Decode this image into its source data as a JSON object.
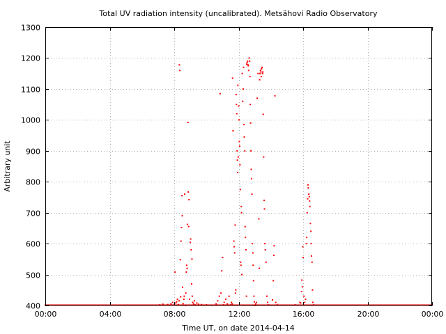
{
  "chart_data": {
    "type": "scatter",
    "title": "Total UV radiation intensity (uncalibrated). Metsähovi Radio Observatory",
    "xlabel": "Time UT, on date 2014-04-14",
    "ylabel": "Arbitrary unit",
    "xlim": [
      0,
      24
    ],
    "ylim": [
      400,
      1300
    ],
    "x_ticks": [
      {
        "value": 0,
        "label": "00:00"
      },
      {
        "value": 4,
        "label": "04:00"
      },
      {
        "value": 8,
        "label": "08:00"
      },
      {
        "value": 12,
        "label": "12:00"
      },
      {
        "value": 16,
        "label": "16:00"
      },
      {
        "value": 20,
        "label": "20:00"
      },
      {
        "value": 24,
        "label": "00:00"
      }
    ],
    "y_ticks": [
      400,
      500,
      600,
      700,
      800,
      900,
      1000,
      1100,
      1200,
      1300
    ],
    "grid": true,
    "series": [
      {
        "color": "#ff0000",
        "baseline": {
          "y": 400,
          "x_from": 0,
          "x_to": 24,
          "step_hours": 0.04
        },
        "points": [
          [
            7.1,
            402
          ],
          [
            7.3,
            404
          ],
          [
            7.6,
            403
          ],
          [
            7.8,
            405
          ],
          [
            7.9,
            410
          ],
          [
            8.0,
            402
          ],
          [
            8.05,
            508
          ],
          [
            8.1,
            408
          ],
          [
            8.15,
            412
          ],
          [
            8.2,
            420
          ],
          [
            8.25,
            403
          ],
          [
            8.3,
            415
          ],
          [
            8.32,
            1178
          ],
          [
            8.35,
            1160
          ],
          [
            8.38,
            548
          ],
          [
            8.4,
            428
          ],
          [
            8.42,
            608
          ],
          [
            8.45,
            652
          ],
          [
            8.48,
            755
          ],
          [
            8.5,
            690
          ],
          [
            8.52,
            459
          ],
          [
            8.55,
            406
          ],
          [
            8.6,
            420
          ],
          [
            8.62,
            430
          ],
          [
            8.65,
            760
          ],
          [
            8.7,
            400
          ],
          [
            8.72,
            440
          ],
          [
            8.75,
            508
          ],
          [
            8.77,
            530
          ],
          [
            8.8,
            520
          ],
          [
            8.82,
            662
          ],
          [
            8.85,
            992
          ],
          [
            8.87,
            767
          ],
          [
            8.9,
            655
          ],
          [
            8.92,
            742
          ],
          [
            8.95,
            420
          ],
          [
            9.0,
            604
          ],
          [
            9.02,
            615
          ],
          [
            9.05,
            580
          ],
          [
            9.08,
            470
          ],
          [
            9.1,
            550
          ],
          [
            9.12,
            430
          ],
          [
            9.15,
            410
          ],
          [
            9.2,
            405
          ],
          [
            9.25,
            415
          ],
          [
            9.3,
            402
          ],
          [
            9.4,
            408
          ],
          [
            9.5,
            404
          ],
          [
            9.6,
            401
          ],
          [
            9.7,
            403
          ],
          [
            10.0,
            402
          ],
          [
            10.3,
            401
          ],
          [
            10.6,
            405
          ],
          [
            10.7,
            415
          ],
          [
            10.8,
            430
          ],
          [
            10.85,
            1085
          ],
          [
            10.9,
            440
          ],
          [
            10.95,
            512
          ],
          [
            11.0,
            555
          ],
          [
            11.05,
            402
          ],
          [
            11.1,
            410
          ],
          [
            11.2,
            420
          ],
          [
            11.3,
            405
          ],
          [
            11.4,
            430
          ],
          [
            11.5,
            402
          ],
          [
            11.55,
            410
          ],
          [
            11.6,
            405
          ],
          [
            11.62,
            1135
          ],
          [
            11.65,
            965
          ],
          [
            11.7,
            608
          ],
          [
            11.72,
            590
          ],
          [
            11.75,
            570
          ],
          [
            11.78,
            660
          ],
          [
            11.8,
            440
          ],
          [
            11.82,
            450
          ],
          [
            11.84,
            1082
          ],
          [
            11.86,
            1050
          ],
          [
            11.88,
            1020
          ],
          [
            11.9,
            900
          ],
          [
            11.92,
            870
          ],
          [
            11.94,
            830
          ],
          [
            11.95,
            1112
          ],
          [
            11.97,
            880
          ],
          [
            12.0,
            1045
          ],
          [
            12.02,
            1000
          ],
          [
            12.04,
            930
          ],
          [
            12.06,
            915
          ],
          [
            12.08,
            855
          ],
          [
            12.1,
            775
          ],
          [
            12.12,
            540
          ],
          [
            12.14,
            530
          ],
          [
            12.16,
            720
          ],
          [
            12.18,
            700
          ],
          [
            12.2,
            500
          ],
          [
            12.22,
            1150
          ],
          [
            12.25,
            1060
          ],
          [
            12.28,
            1100
          ],
          [
            12.3,
            1170
          ],
          [
            12.32,
            985
          ],
          [
            12.35,
            945
          ],
          [
            12.38,
            900
          ],
          [
            12.4,
            655
          ],
          [
            12.42,
            620
          ],
          [
            12.45,
            580
          ],
          [
            12.48,
            430
          ],
          [
            12.5,
            1180
          ],
          [
            12.52,
            1185
          ],
          [
            12.55,
            1190
          ],
          [
            12.58,
            1178
          ],
          [
            12.6,
            1175
          ],
          [
            12.62,
            1160
          ],
          [
            12.65,
            1200
          ],
          [
            12.68,
            1190
          ],
          [
            12.7,
            1140
          ],
          [
            12.72,
            1050
          ],
          [
            12.74,
            990
          ],
          [
            12.76,
            900
          ],
          [
            12.78,
            840
          ],
          [
            12.8,
            810
          ],
          [
            12.82,
            760
          ],
          [
            12.85,
            600
          ],
          [
            12.88,
            570
          ],
          [
            12.9,
            530
          ],
          [
            12.92,
            480
          ],
          [
            12.95,
            430
          ],
          [
            12.97,
            412
          ],
          [
            13.0,
            400
          ],
          [
            13.05,
            405
          ],
          [
            13.1,
            410
          ],
          [
            13.15,
            1070
          ],
          [
            13.2,
            1150
          ],
          [
            13.25,
            680
          ],
          [
            13.28,
            520
          ],
          [
            13.3,
            1130
          ],
          [
            13.32,
            1150
          ],
          [
            13.35,
            1160
          ],
          [
            13.38,
            1155
          ],
          [
            13.4,
            1140
          ],
          [
            13.42,
            1165
          ],
          [
            13.45,
            1170
          ],
          [
            13.48,
            1150
          ],
          [
            13.5,
            1155
          ],
          [
            13.52,
            1018
          ],
          [
            13.55,
            880
          ],
          [
            13.58,
            740
          ],
          [
            13.6,
            712
          ],
          [
            13.62,
            600
          ],
          [
            13.65,
            580
          ],
          [
            13.7,
            540
          ],
          [
            13.75,
            430
          ],
          [
            13.8,
            410
          ],
          [
            13.85,
            402
          ],
          [
            14.0,
            401
          ],
          [
            14.1,
            418
          ],
          [
            14.15,
            480
          ],
          [
            14.18,
            562
          ],
          [
            14.2,
            593
          ],
          [
            14.25,
            1078
          ],
          [
            14.3,
            410
          ],
          [
            14.4,
            403
          ],
          [
            15.0,
            401
          ],
          [
            15.5,
            402
          ],
          [
            15.8,
            410
          ],
          [
            15.85,
            408
          ],
          [
            15.9,
            445
          ],
          [
            15.92,
            482
          ],
          [
            15.95,
            460
          ],
          [
            15.98,
            590
          ],
          [
            16.0,
            555
          ],
          [
            16.05,
            430
          ],
          [
            16.1,
            410
          ],
          [
            16.15,
            420
          ],
          [
            16.2,
            600
          ],
          [
            16.22,
            620
          ],
          [
            16.25,
            700
          ],
          [
            16.28,
            745
          ],
          [
            16.3,
            790
          ],
          [
            16.32,
            780
          ],
          [
            16.35,
            760
          ],
          [
            16.38,
            752
          ],
          [
            16.4,
            738
          ],
          [
            16.42,
            720
          ],
          [
            16.45,
            665
          ],
          [
            16.48,
            640
          ],
          [
            16.5,
            600
          ],
          [
            16.52,
            560
          ],
          [
            16.55,
            540
          ],
          [
            16.58,
            450
          ],
          [
            16.6,
            410
          ],
          [
            16.65,
            402
          ]
        ]
      }
    ]
  }
}
